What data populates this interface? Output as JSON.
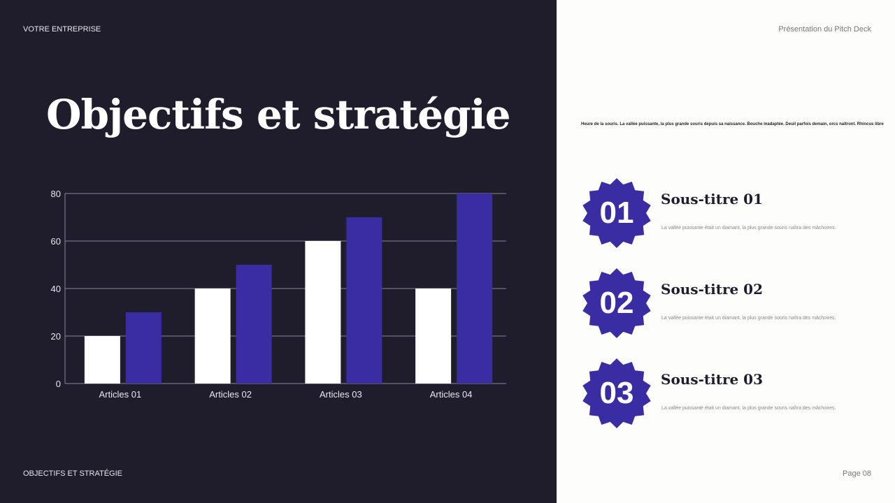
{
  "header": {
    "company": "VOTRE ENTREPRISE",
    "deck": "Présentation du Pitch Deck"
  },
  "title": "Objectifs et stratégie",
  "intro": "Heure de la souris. La vallée puissante, la plus grande souris depuis sa naissance. Bouche inadaptée. Deuil parfois demain, orcs naîtront. Rhincus libre",
  "items": [
    {
      "number": "01",
      "subtitle": "Sous-titre 01",
      "text": "La vallée puissante était un diamant, la plus grande souris naîtra des mâchoires."
    },
    {
      "number": "02",
      "subtitle": "Sous-titre 02",
      "text": "La vallée puissante était un diamant, la plus grande souris naîtra des mâchoires."
    },
    {
      "number": "03",
      "subtitle": "Sous-titre 03",
      "text": "La vallée puissante était un diamant, la plus grande souris naîtra des mâchoires."
    }
  ],
  "footer": {
    "section": "OBJECTIFS ET STRATÉGIE",
    "page": "Page 08"
  },
  "colors": {
    "background": "#1f1c2c",
    "accent": "#3a2ca3",
    "bar_light": "#ffffff"
  },
  "chart_data": {
    "type": "bar",
    "categories": [
      "Articles 01",
      "Articles 02",
      "Articles 03",
      "Articles 04"
    ],
    "series": [
      {
        "values": [
          20,
          40,
          60,
          40
        ],
        "color": "#ffffff"
      },
      {
        "values": [
          30,
          50,
          70,
          80
        ],
        "color": "#3a2ca3"
      }
    ],
    "yticks": [
      0,
      20,
      40,
      60,
      80
    ],
    "ylim": [
      0,
      80
    ],
    "grid": true,
    "legend": "none"
  }
}
